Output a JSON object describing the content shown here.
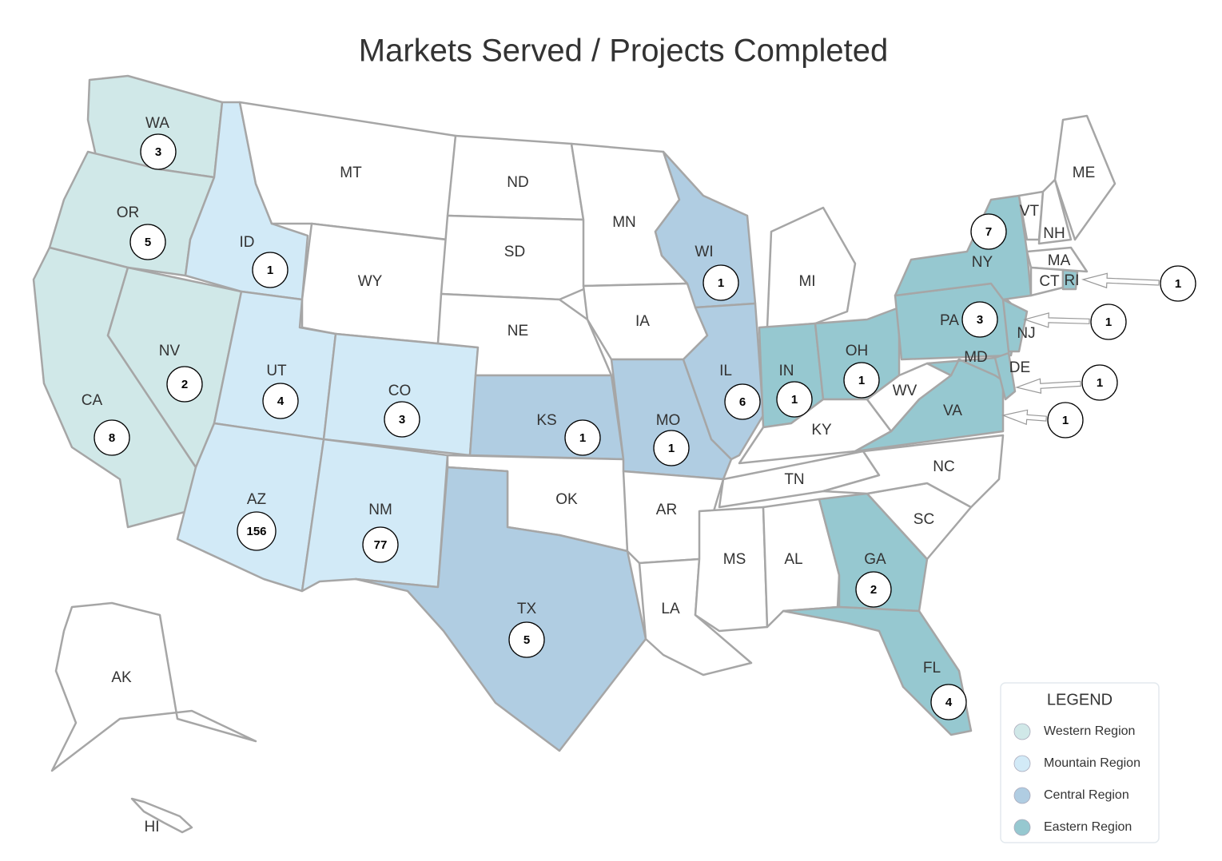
{
  "title": "Markets Served / Projects Completed",
  "legend": {
    "title": "LEGEND",
    "items": [
      {
        "name": "Western Region",
        "color": "#d0e8e8"
      },
      {
        "name": "Mountain Region",
        "color": "#d2eaf7"
      },
      {
        "name": "Central Region",
        "color": "#b0cde2"
      },
      {
        "name": "Eastern Region",
        "color": "#96c8d0"
      }
    ]
  },
  "states": [
    {
      "abbr": "WA",
      "region": "Western Region",
      "count": 3
    },
    {
      "abbr": "OR",
      "region": "Western Region",
      "count": 5
    },
    {
      "abbr": "CA",
      "region": "Western Region",
      "count": 8
    },
    {
      "abbr": "NV",
      "region": "Western Region",
      "count": 2
    },
    {
      "abbr": "ID",
      "region": "Mountain Region",
      "count": 1
    },
    {
      "abbr": "MT"
    },
    {
      "abbr": "WY"
    },
    {
      "abbr": "UT",
      "region": "Mountain Region",
      "count": 4
    },
    {
      "abbr": "CO",
      "region": "Mountain Region",
      "count": 3
    },
    {
      "abbr": "AZ",
      "region": "Mountain Region",
      "count": 156
    },
    {
      "abbr": "NM",
      "region": "Mountain Region",
      "count": 77
    },
    {
      "abbr": "ND"
    },
    {
      "abbr": "SD"
    },
    {
      "abbr": "NE"
    },
    {
      "abbr": "KS",
      "region": "Central Region",
      "count": 1
    },
    {
      "abbr": "OK"
    },
    {
      "abbr": "TX",
      "region": "Central Region",
      "count": 5
    },
    {
      "abbr": "MN"
    },
    {
      "abbr": "IA"
    },
    {
      "abbr": "MO",
      "region": "Central Region",
      "count": 1
    },
    {
      "abbr": "AR"
    },
    {
      "abbr": "LA"
    },
    {
      "abbr": "WI",
      "region": "Central Region",
      "count": 1
    },
    {
      "abbr": "IL",
      "region": "Central Region",
      "count": 6
    },
    {
      "abbr": "MI"
    },
    {
      "abbr": "IN",
      "region": "Eastern Region",
      "count": 1
    },
    {
      "abbr": "OH",
      "region": "Eastern Region",
      "count": 1
    },
    {
      "abbr": "KY"
    },
    {
      "abbr": "TN"
    },
    {
      "abbr": "MS"
    },
    {
      "abbr": "AL"
    },
    {
      "abbr": "GA",
      "region": "Eastern Region",
      "count": 2
    },
    {
      "abbr": "FL",
      "region": "Eastern Region",
      "count": 4
    },
    {
      "abbr": "SC"
    },
    {
      "abbr": "NC"
    },
    {
      "abbr": "VA",
      "region": "Eastern Region"
    },
    {
      "abbr": "WV"
    },
    {
      "abbr": "PA",
      "region": "Eastern Region",
      "count": 3
    },
    {
      "abbr": "MD",
      "region": "Eastern Region",
      "count": 1
    },
    {
      "abbr": "DE",
      "region": "Eastern Region",
      "count": 1
    },
    {
      "abbr": "NJ",
      "region": "Eastern Region",
      "count": 1
    },
    {
      "abbr": "NY",
      "region": "Eastern Region",
      "count": 7
    },
    {
      "abbr": "VT"
    },
    {
      "abbr": "NH"
    },
    {
      "abbr": "ME"
    },
    {
      "abbr": "MA"
    },
    {
      "abbr": "CT"
    },
    {
      "abbr": "RI",
      "region": "Eastern Region",
      "count": 1
    },
    {
      "abbr": "AK"
    },
    {
      "abbr": "HI"
    }
  ]
}
